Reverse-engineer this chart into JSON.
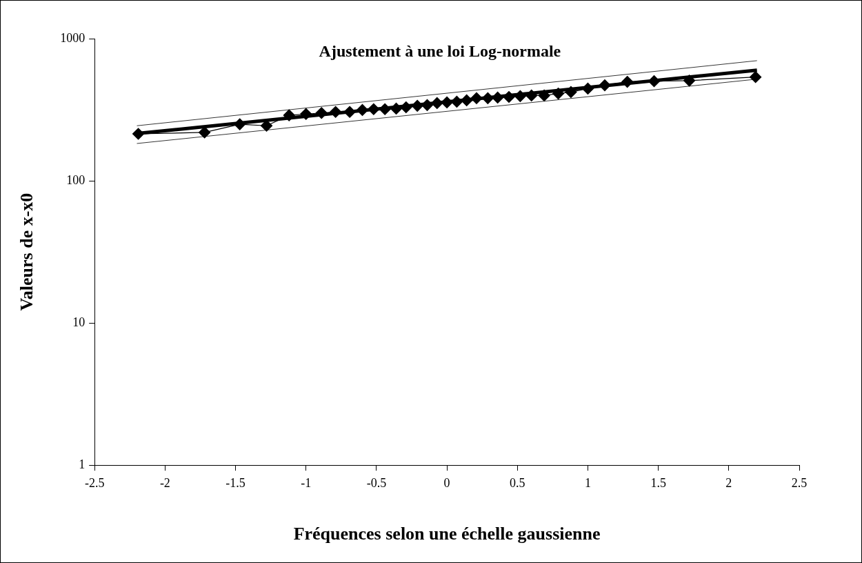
{
  "chart_data": {
    "type": "line",
    "title": "Ajustement à une loi Log-normale",
    "xlabel": "Fréquences selon une échelle gaussienne",
    "ylabel": "Valeurs de x-x0",
    "xlim": [
      -2.5,
      2.5
    ],
    "xticks": [
      -2.5,
      -2,
      -1.5,
      -1,
      -0.5,
      0,
      0.5,
      1,
      1.5,
      2,
      2.5
    ],
    "ylim": [
      1,
      1000
    ],
    "yticks": [
      1,
      10,
      100,
      1000
    ],
    "log": "y",
    "grid": false,
    "legend": false,
    "marker": "diamond",
    "line_style": "solid",
    "series": [
      {
        "color": "#000000",
        "x": [
          -2.19,
          -1.72,
          -1.47,
          -1.28,
          -1.12,
          -1.0,
          -0.89,
          -0.79,
          -0.69,
          -0.6,
          -0.52,
          -0.44,
          -0.36,
          -0.29,
          -0.21,
          -0.14,
          -0.07,
          0,
          0.07,
          0.14,
          0.21,
          0.29,
          0.36,
          0.44,
          0.52,
          0.6,
          0.69,
          0.79,
          0.88,
          1.0,
          1.12,
          1.28,
          1.47,
          1.72,
          2.19
        ],
        "values": [
          214,
          219,
          250,
          244,
          289,
          295,
          300,
          305,
          305,
          315,
          319,
          319,
          322,
          329,
          337,
          341,
          352,
          356,
          360,
          368,
          381,
          381,
          385,
          389,
          394,
          398,
          398,
          411,
          421,
          445,
          470,
          497,
          502,
          507,
          537
        ]
      },
      {
        "color": "#000000",
        "marker": "none",
        "x": [
          -2.2,
          2.2
        ],
        "values": [
          215,
          600
        ]
      },
      {
        "color": "#000000",
        "marker": "none",
        "x": [
          -2.2,
          2.2
        ],
        "values": [
          244,
          700
        ]
      },
      {
        "color": "#000000",
        "marker": "none",
        "x": [
          -2.2,
          2.2
        ],
        "values": [
          183,
          519
        ]
      }
    ]
  }
}
